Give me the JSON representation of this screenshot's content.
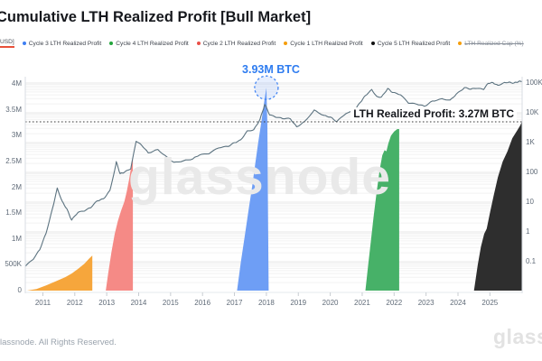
{
  "header": {
    "title": "Cumulative LTH Realized Profit [Bull Market]"
  },
  "legend": {
    "unit_toggle": {
      "label": "USD]",
      "underline_color": "#e8503a"
    },
    "items": [
      {
        "id": "cycle-3",
        "label": "Cycle 3 LTH Realized Profit",
        "color": "#3d7ef2",
        "disabled": false
      },
      {
        "id": "cycle-4",
        "label": "Cycle 4 LTH Realized Profit",
        "color": "#23a63c",
        "disabled": false
      },
      {
        "id": "cycle-2",
        "label": "Cycle 2 LTH Realized Profit",
        "color": "#ea4f47",
        "disabled": false
      },
      {
        "id": "cycle-1",
        "label": "Cycle 1 LTH Realized Profit",
        "color": "#f59e0b",
        "disabled": false
      },
      {
        "id": "cycle-5",
        "label": "Cycle 5 LTH Realized Profit",
        "color": "#111111",
        "disabled": false
      },
      {
        "id": "lth-realized-cap",
        "label": "LTH Realized Cap (%)",
        "color": "#f59e0b",
        "disabled": true
      }
    ]
  },
  "annotations": {
    "peak_label": "3.93M BTC",
    "peak_year": 2018.0,
    "peak_value_millions": 3.93,
    "realized_label": "LTH Realized Profit: 3.27M BTC",
    "realized_value_millions": 3.27
  },
  "watermark": {
    "center": "glassnode",
    "corner": "glassnode"
  },
  "footer": {
    "copyright": "lassnode. All Rights Reserved."
  },
  "chart_data": {
    "type": "area+line",
    "title": "Cumulative LTH Realized Profit [Bull Market]",
    "left_axis": {
      "kind": "linear",
      "unit": "BTC",
      "ticks": [
        [
          "4M",
          4
        ],
        [
          "3.5M",
          3.5
        ],
        [
          "3M",
          3
        ],
        [
          "2.5M",
          2.5
        ],
        [
          "2M",
          2
        ],
        [
          "1.5M",
          1.5
        ],
        [
          "1M",
          1
        ],
        [
          "500K",
          0.5
        ],
        [
          "0",
          0
        ]
      ],
      "range_millions": [
        0,
        4.15
      ]
    },
    "right_axis": {
      "kind": "log",
      "unit": "USD",
      "ticks": [
        [
          "100K",
          100000
        ],
        [
          "10K",
          10000
        ],
        [
          "1K",
          1000
        ],
        [
          "100",
          100
        ],
        [
          "10",
          10
        ],
        [
          "1",
          1
        ],
        [
          "0.1",
          0.1
        ]
      ]
    },
    "x_axis": {
      "ticks": [
        "2011",
        "2012",
        "2013",
        "2014",
        "2015",
        "2016",
        "2017",
        "2018",
        "2019",
        "2020",
        "2021",
        "2022",
        "2023",
        "2024",
        "2025"
      ]
    },
    "series": [
      {
        "id": "cycle-1",
        "name": "Cycle 1 LTH Realized Profit",
        "type": "area",
        "axis": "left",
        "color": "#f6a63c",
        "points": [
          [
            2010.5,
            0
          ],
          [
            2010.8,
            0.03
          ],
          [
            2011.1,
            0.1
          ],
          [
            2011.4,
            0.18
          ],
          [
            2011.7,
            0.26
          ],
          [
            2011.9,
            0.33
          ],
          [
            2012.1,
            0.42
          ],
          [
            2012.3,
            0.52
          ],
          [
            2012.45,
            0.62
          ],
          [
            2012.55,
            0.68
          ]
        ]
      },
      {
        "id": "cycle-2",
        "name": "Cycle 2 LTH Realized Profit",
        "type": "area",
        "axis": "left",
        "color": "#f58a86",
        "points": [
          [
            2012.97,
            0
          ],
          [
            2013.05,
            0.35
          ],
          [
            2013.15,
            0.75
          ],
          [
            2013.25,
            1.1
          ],
          [
            2013.35,
            1.35
          ],
          [
            2013.45,
            1.55
          ],
          [
            2013.55,
            1.72
          ],
          [
            2013.62,
            1.9
          ],
          [
            2013.7,
            2.15
          ],
          [
            2013.76,
            2.38
          ],
          [
            2013.82,
            2.55
          ]
        ]
      },
      {
        "id": "cycle-3",
        "name": "Cycle 3 LTH Realized Profit",
        "type": "area",
        "axis": "left",
        "color": "#6e9ef5",
        "points": [
          [
            2017.08,
            0
          ],
          [
            2017.2,
            0.55
          ],
          [
            2017.32,
            1.05
          ],
          [
            2017.45,
            1.6
          ],
          [
            2017.55,
            2.0
          ],
          [
            2017.65,
            2.45
          ],
          [
            2017.75,
            2.9
          ],
          [
            2017.85,
            3.3
          ],
          [
            2017.93,
            3.65
          ],
          [
            2018.0,
            3.93
          ],
          [
            2018.03,
            3.2
          ],
          [
            2018.05,
            1.5
          ],
          [
            2018.07,
            0
          ]
        ]
      },
      {
        "id": "cycle-4",
        "name": "Cycle 4 LTH Realized Profit",
        "type": "area",
        "axis": "left",
        "color": "#47b168",
        "points": [
          [
            2021.1,
            0
          ],
          [
            2021.18,
            0.45
          ],
          [
            2021.27,
            0.95
          ],
          [
            2021.36,
            1.45
          ],
          [
            2021.45,
            1.9
          ],
          [
            2021.55,
            2.35
          ],
          [
            2021.63,
            2.62
          ],
          [
            2021.7,
            2.72
          ],
          [
            2021.76,
            2.7
          ],
          [
            2021.82,
            2.85
          ],
          [
            2021.9,
            3.0
          ],
          [
            2022.0,
            3.08
          ],
          [
            2022.1,
            3.13
          ],
          [
            2022.16,
            3.13
          ]
        ]
      },
      {
        "id": "cycle-5",
        "name": "Cycle 5 LTH Realized Profit",
        "type": "area",
        "axis": "left",
        "color": "#2e2e2e",
        "points": [
          [
            2024.5,
            0
          ],
          [
            2024.62,
            0.5
          ],
          [
            2024.72,
            0.85
          ],
          [
            2024.82,
            1.1
          ],
          [
            2024.9,
            1.2
          ],
          [
            2025.0,
            1.5
          ],
          [
            2025.12,
            1.85
          ],
          [
            2025.25,
            2.2
          ],
          [
            2025.4,
            2.5
          ],
          [
            2025.55,
            2.7
          ],
          [
            2025.7,
            2.95
          ],
          [
            2025.85,
            3.1
          ],
          [
            2025.95,
            3.2
          ],
          [
            2026.0,
            3.27
          ]
        ]
      },
      {
        "id": "btc-price",
        "name": "BTC Price",
        "type": "line",
        "axis": "right",
        "color": "#5c7380",
        "points": [
          [
            2010.45,
            0.07
          ],
          [
            2010.7,
            0.12
          ],
          [
            2010.9,
            0.25
          ],
          [
            2011.1,
            0.9
          ],
          [
            2011.3,
            6
          ],
          [
            2011.45,
            30
          ],
          [
            2011.6,
            11
          ],
          [
            2011.75,
            6
          ],
          [
            2011.9,
            2.5
          ],
          [
            2012.1,
            4.5
          ],
          [
            2012.3,
            5
          ],
          [
            2012.5,
            6.5
          ],
          [
            2012.7,
            11
          ],
          [
            2012.9,
            13
          ],
          [
            2013.1,
            25
          ],
          [
            2013.25,
            120
          ],
          [
            2013.3,
            230
          ],
          [
            2013.42,
            90
          ],
          [
            2013.55,
            100
          ],
          [
            2013.75,
            130
          ],
          [
            2013.92,
            1100
          ],
          [
            2014.1,
            800
          ],
          [
            2014.3,
            450
          ],
          [
            2014.6,
            590
          ],
          [
            2014.9,
            320
          ],
          [
            2015.1,
            220
          ],
          [
            2015.4,
            245
          ],
          [
            2015.7,
            285
          ],
          [
            2015.9,
            380
          ],
          [
            2016.2,
            420
          ],
          [
            2016.5,
            660
          ],
          [
            2016.8,
            740
          ],
          [
            2017.0,
            1000
          ],
          [
            2017.2,
            1250
          ],
          [
            2017.4,
            2500
          ],
          [
            2017.6,
            2700
          ],
          [
            2017.8,
            6000
          ],
          [
            2017.95,
            19000
          ],
          [
            2018.1,
            8500
          ],
          [
            2018.3,
            7000
          ],
          [
            2018.5,
            6400
          ],
          [
            2018.75,
            6300
          ],
          [
            2018.95,
            3400
          ],
          [
            2019.2,
            5200
          ],
          [
            2019.5,
            12500
          ],
          [
            2019.8,
            8200
          ],
          [
            2020.0,
            7200
          ],
          [
            2020.2,
            5000
          ],
          [
            2020.5,
            9500
          ],
          [
            2020.75,
            11500
          ],
          [
            2020.95,
            23000
          ],
          [
            2021.1,
            38000
          ],
          [
            2021.3,
            61000
          ],
          [
            2021.45,
            36000
          ],
          [
            2021.6,
            34000
          ],
          [
            2021.8,
            66000
          ],
          [
            2021.95,
            48000
          ],
          [
            2022.2,
            40000
          ],
          [
            2022.45,
            21000
          ],
          [
            2022.7,
            19500
          ],
          [
            2022.95,
            16500
          ],
          [
            2023.2,
            25000
          ],
          [
            2023.5,
            30000
          ],
          [
            2023.75,
            27000
          ],
          [
            2023.95,
            43000
          ],
          [
            2024.2,
            70000
          ],
          [
            2024.4,
            62000
          ],
          [
            2024.6,
            66000
          ],
          [
            2024.8,
            60000
          ],
          [
            2024.95,
            98000
          ],
          [
            2025.1,
            102000
          ],
          [
            2025.25,
            84000
          ],
          [
            2025.45,
            105000
          ],
          [
            2025.6,
            108000
          ],
          [
            2025.75,
            100000
          ],
          [
            2025.9,
            112000
          ],
          [
            2026.0,
            113000
          ]
        ]
      }
    ]
  }
}
